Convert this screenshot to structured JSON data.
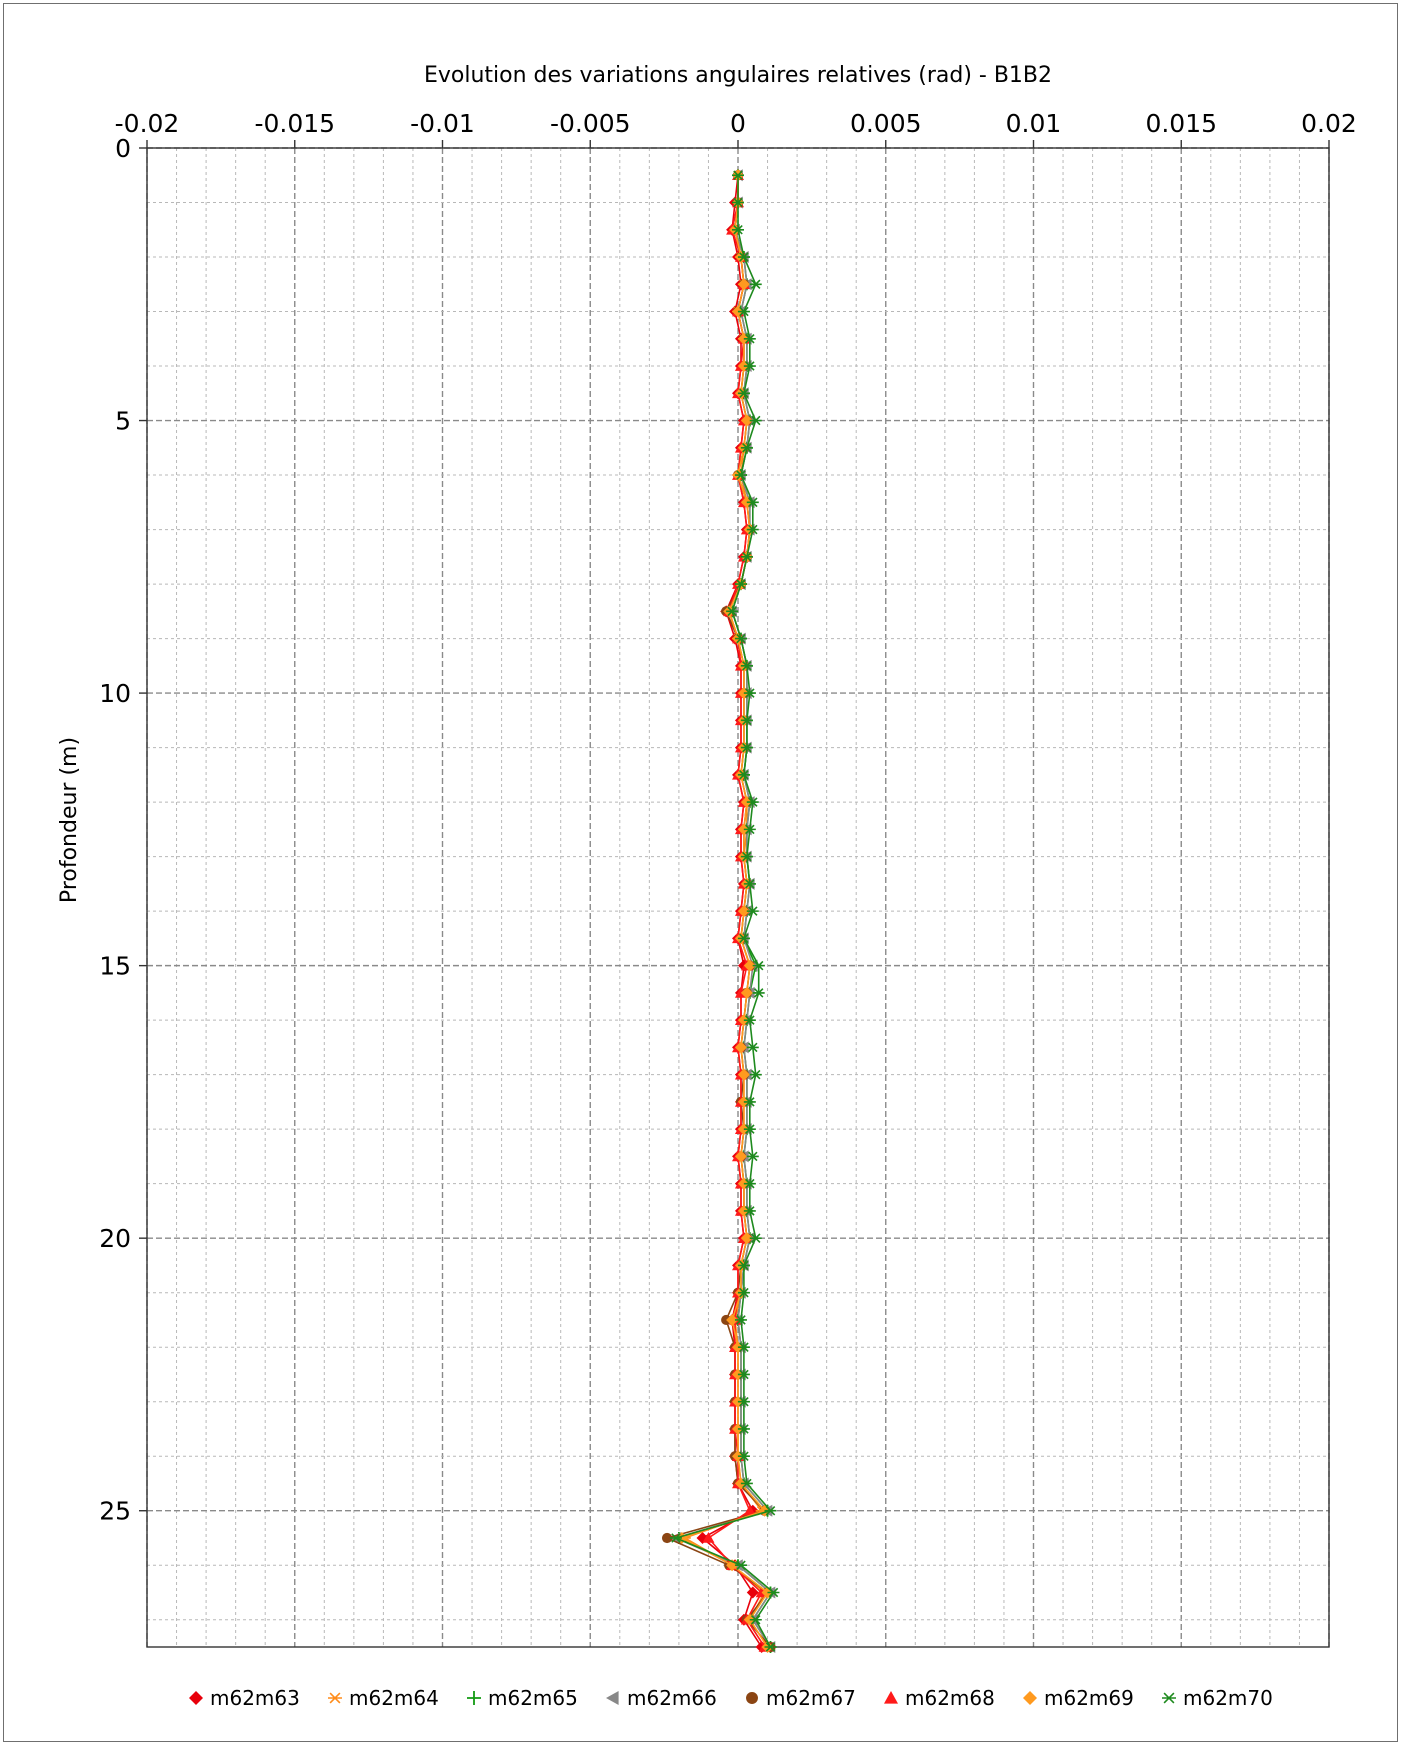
{
  "chart_data": {
    "type": "line",
    "title": "Evolution des variations angulaires relatives (rad) - B1B2",
    "xlabel": "",
    "ylabel": "Profondeur (m)",
    "xlim": [
      -0.02,
      0.02
    ],
    "ylim": [
      0,
      27.5
    ],
    "y_inverted": true,
    "x_axis_position": "top",
    "x_ticks": [
      -0.02,
      -0.015,
      -0.01,
      -0.005,
      0,
      0.005,
      0.01,
      0.015,
      0.02
    ],
    "x_tick_labels": [
      "-0.02",
      "-0.015",
      "-0.01",
      "-0.005",
      "0",
      "0.005",
      "0.01",
      "0.015",
      "0.02"
    ],
    "y_ticks": [
      0,
      5,
      10,
      15,
      20,
      25
    ],
    "y_tick_labels": [
      "0",
      "5",
      "10",
      "15",
      "20",
      "25"
    ],
    "grid": true,
    "legend_position": "bottom",
    "depths": [
      0.5,
      1,
      1.5,
      2,
      2.5,
      3,
      3.5,
      4,
      4.5,
      5,
      5.5,
      6,
      6.5,
      7,
      7.5,
      8,
      8.5,
      9,
      9.5,
      10,
      10.5,
      11,
      11.5,
      12,
      12.5,
      13,
      13.5,
      14,
      14.5,
      15,
      15.5,
      16,
      16.5,
      17,
      17.5,
      18,
      18.5,
      19,
      19.5,
      20,
      20.5,
      21,
      21.5,
      22,
      22.5,
      23,
      23.5,
      24,
      24.5,
      25,
      25.5,
      26,
      26.5,
      27,
      27.5
    ],
    "series": [
      {
        "name": "m62m63",
        "color": "#e8000b",
        "marker": "diamond",
        "values": [
          0,
          -0.0001,
          -0.0002,
          0,
          0.0001,
          -0.0001,
          0.0001,
          0.0001,
          0,
          0.0002,
          0.0001,
          0,
          0.0002,
          0.0003,
          0.0002,
          0,
          -0.0004,
          -0.0001,
          0.0001,
          0.0001,
          0.0001,
          0.0001,
          0,
          0.0002,
          0.0001,
          0.0001,
          0.0002,
          0.0001,
          0,
          0.0002,
          0.0001,
          0.0001,
          0,
          0.0001,
          0.0001,
          0.0001,
          0,
          0.0001,
          0.0001,
          0.0002,
          0,
          0,
          -0.0002,
          -0.0001,
          -0.0001,
          -0.0001,
          -0.0001,
          -0.0001,
          0,
          0.0005,
          -0.0012,
          -0.0001,
          0.0005,
          0.0002,
          0.0008
        ]
      },
      {
        "name": "m62m64",
        "color": "#ff8c1a",
        "marker": "star",
        "values": [
          0,
          0,
          -0.0001,
          0.0001,
          0.0002,
          0,
          0.0002,
          0.0002,
          0.0001,
          0.0003,
          0.0002,
          0.0001,
          0.0003,
          0.0004,
          0.0003,
          0.0001,
          -0.0003,
          0,
          0.0002,
          0.0002,
          0.0002,
          0.0002,
          0.0001,
          0.0003,
          0.0003,
          0.0002,
          0.0003,
          0.0002,
          0.0001,
          0.0004,
          0.0003,
          0.0002,
          0.0001,
          0.0002,
          0.0002,
          0.0002,
          0.0001,
          0.0002,
          0.0002,
          0.0003,
          0.0001,
          0.0001,
          -0.0001,
          0,
          0,
          0,
          0,
          0,
          0.0001,
          0.0008,
          -0.0018,
          -0.0002,
          0.0009,
          0.0004,
          0.001
        ]
      },
      {
        "name": "m62m65",
        "color": "#129a12",
        "marker": "plus",
        "values": [
          0,
          0,
          -0.0001,
          0.0002,
          0.0003,
          0.0001,
          0.0003,
          0.0003,
          0.0002,
          0.0004,
          0.0003,
          0.0001,
          0.0004,
          0.0004,
          0.0003,
          0.0001,
          -0.0002,
          0.0001,
          0.0003,
          0.0003,
          0.0003,
          0.0003,
          0.0002,
          0.0004,
          0.0003,
          0.0003,
          0.0004,
          0.0003,
          0.0002,
          0.0006,
          0.0004,
          0.0003,
          0.0002,
          0.0003,
          0.0003,
          0.0003,
          0.0002,
          0.0003,
          0.0003,
          0.0004,
          0.0002,
          0.0001,
          0,
          0.0001,
          0.0001,
          0.0001,
          0.0001,
          0.0001,
          0.0002,
          0.001,
          -0.002,
          0,
          0.0011,
          0.0005,
          0.0011
        ]
      },
      {
        "name": "m62m66",
        "color": "#888888",
        "marker": "triangle-left",
        "values": [
          0,
          0,
          -0.0001,
          0.0002,
          0.0003,
          0.0001,
          0.0003,
          0.0003,
          0.0002,
          0.0004,
          0.0003,
          0.0001,
          0.0004,
          0.0004,
          0.0003,
          0.0001,
          -0.0002,
          0.0001,
          0.0003,
          0.0003,
          0.0003,
          0.0003,
          0.0002,
          0.0004,
          0.0003,
          0.0003,
          0.0004,
          0.0003,
          0.0002,
          0.0005,
          0.0004,
          0.0003,
          0.0002,
          0.0003,
          0.0003,
          0.0003,
          0.0002,
          0.0003,
          0.0003,
          0.0004,
          0.0002,
          0.0001,
          0,
          0.0001,
          0.0001,
          0.0001,
          0.0001,
          0.0001,
          0.0002,
          0.001,
          -0.0021,
          0,
          0.0011,
          0.0005,
          0.0011
        ]
      },
      {
        "name": "m62m67",
        "color": "#8b4513",
        "marker": "circle",
        "values": [
          0,
          0,
          -0.0001,
          0.0001,
          0.0002,
          0,
          0.0002,
          0.0002,
          0.0001,
          0.0003,
          0.0002,
          0,
          0.0003,
          0.0004,
          0.0003,
          0.0001,
          -0.0004,
          0,
          0.0002,
          0.0002,
          0.0002,
          0.0002,
          0.0001,
          0.0003,
          0.0002,
          0.0002,
          0.0003,
          0.0002,
          0.0001,
          0.0004,
          0.0003,
          0.0002,
          0.0001,
          0.0002,
          0.0001,
          0.0002,
          0.0001,
          0.0002,
          0.0002,
          0.0003,
          0.0001,
          0,
          -0.0004,
          -0.0001,
          -0.0001,
          -0.0001,
          -0.0001,
          -0.0001,
          0,
          0.0009,
          -0.0024,
          -0.0003,
          0.001,
          0.0003,
          0.0011
        ]
      },
      {
        "name": "m62m68",
        "color": "#ff1a1a",
        "marker": "triangle-up",
        "values": [
          0,
          0,
          -0.0002,
          0.0001,
          0.0002,
          0,
          0.0002,
          0.0001,
          0,
          0.0002,
          0.0001,
          0,
          0.0002,
          0.0003,
          0.0002,
          0,
          -0.0003,
          0,
          0.0001,
          0.0001,
          0.0001,
          0.0001,
          0,
          0.0002,
          0.0001,
          0.0001,
          0.0002,
          0.0001,
          0,
          0.0003,
          0.0001,
          0.0001,
          0,
          0.0001,
          0.0001,
          0.0001,
          0,
          0.0001,
          0.0001,
          0.0002,
          0,
          0,
          -0.0001,
          -0.0001,
          -0.0001,
          -0.0001,
          -0.0001,
          0,
          0,
          0.0004,
          -0.001,
          -0.0002,
          0.0008,
          0.0003,
          0.0009
        ]
      },
      {
        "name": "m62m69",
        "color": "#ff9a1f",
        "marker": "diamond",
        "values": [
          0,
          0,
          -0.0001,
          0.0001,
          0.0002,
          0,
          0.0002,
          0.0002,
          0.0001,
          0.0003,
          0.0002,
          0,
          0.0003,
          0.0004,
          0.0003,
          0.0001,
          -0.0003,
          0,
          0.0002,
          0.0002,
          0.0002,
          0.0002,
          0.0001,
          0.0003,
          0.0002,
          0.0002,
          0.0003,
          0.0002,
          0.0001,
          0.0004,
          0.0003,
          0.0002,
          0.0001,
          0.0002,
          0.0002,
          0.0002,
          0.0001,
          0.0002,
          0.0002,
          0.0003,
          0.0001,
          0.0001,
          -0.0002,
          0,
          0,
          0,
          0,
          0,
          0.0001,
          0.0009,
          -0.0019,
          -0.0002,
          0.001,
          0.0004,
          0.001
        ]
      },
      {
        "name": "m62m70",
        "color": "#1e8a1e",
        "marker": "asterisk",
        "values": [
          0,
          0,
          0,
          0.0002,
          0.0006,
          0.0002,
          0.0004,
          0.0004,
          0.0002,
          0.0006,
          0.0003,
          0.0001,
          0.0005,
          0.0005,
          0.0003,
          0.0001,
          -0.0002,
          0.0001,
          0.0003,
          0.0004,
          0.0003,
          0.0003,
          0.0002,
          0.0005,
          0.0004,
          0.0003,
          0.0004,
          0.0005,
          0.0002,
          0.0007,
          0.0007,
          0.0004,
          0.0005,
          0.0006,
          0.0004,
          0.0004,
          0.0005,
          0.0004,
          0.0004,
          0.0006,
          0.0002,
          0.0002,
          0.0001,
          0.0002,
          0.0002,
          0.0002,
          0.0002,
          0.0002,
          0.0003,
          0.0011,
          -0.0021,
          0.0001,
          0.0012,
          0.0006,
          0.0011
        ]
      }
    ]
  }
}
